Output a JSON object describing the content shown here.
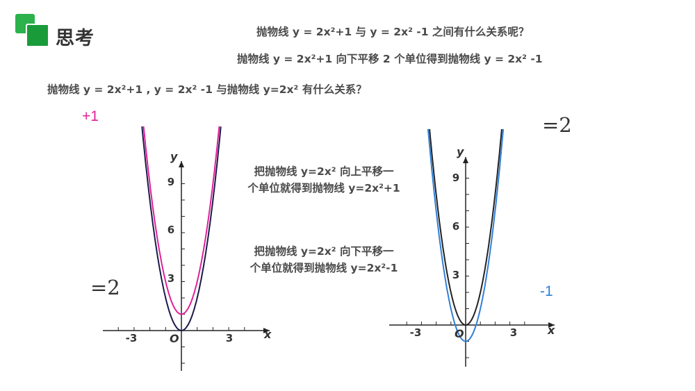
{
  "header": {
    "title": "思考",
    "question1": "抛物线 y = 2x²+1 与 y = 2x² -1 之间有什么关系呢？",
    "answer1": "抛物线 y = 2x²+1 向下平移 2 个单位得到抛物线 y = 2x² -1",
    "question2": "抛物线 y = 2x²+1 , y = 2x² -1 与抛物线 y=2x² 有什么关系？"
  },
  "notes": {
    "up_line1": "把抛物线 y=2x² 向上平移一",
    "up_line2": "个单位就得到抛物线 y=2x²+1",
    "down_line1": "把抛物线 y=2x² 向下平移一",
    "down_line2": "个单位就得到抛物线 y=2x²-1"
  },
  "labels": {
    "plus_one": "+1",
    "eq_two_left": "=2",
    "eq_two_right": "=2",
    "minus_one": "-1"
  },
  "colors": {
    "base_curve": "#1a1a4a",
    "shift_up_curve": "#e0209a",
    "shift_down_curve": "#2f7fd6",
    "right_base_curve": "#222222"
  },
  "chart_data": [
    {
      "type": "line",
      "xlabel": "x",
      "ylabel": "y",
      "origin_label": "O",
      "xticks": [
        "-3",
        "3"
      ],
      "yticks": [
        "3",
        "6",
        "9"
      ],
      "series": [
        {
          "expr": "y=2x^2",
          "x": [
            -1.4,
            -1.2,
            -1,
            -0.8,
            -0.6,
            -0.4,
            -0.2,
            0,
            0.2,
            0.4,
            0.6,
            0.8,
            1,
            1.2,
            1.4
          ],
          "y": [
            3.92,
            2.88,
            2,
            1.28,
            0.72,
            0.32,
            0.08,
            0,
            0.08,
            0.32,
            0.72,
            1.28,
            2,
            2.88,
            3.92
          ]
        },
        {
          "expr": "y=2x^2+1",
          "x": [
            -1.4,
            -1.2,
            -1,
            -0.8,
            -0.6,
            -0.4,
            -0.2,
            0,
            0.2,
            0.4,
            0.6,
            0.8,
            1,
            1.2,
            1.4
          ],
          "y": [
            4.92,
            3.88,
            3,
            2.28,
            1.72,
            1.32,
            1.08,
            1,
            1.08,
            1.32,
            1.72,
            2.28,
            3,
            3.88,
            4.92
          ]
        }
      ]
    },
    {
      "type": "line",
      "xlabel": "x",
      "ylabel": "y",
      "origin_label": "O",
      "xticks": [
        "-3",
        "3"
      ],
      "yticks": [
        "3",
        "6",
        "9"
      ],
      "series": [
        {
          "expr": "y=2x^2",
          "x": [
            -1.4,
            -1.2,
            -1,
            -0.8,
            -0.6,
            -0.4,
            -0.2,
            0,
            0.2,
            0.4,
            0.6,
            0.8,
            1,
            1.2,
            1.4
          ],
          "y": [
            3.92,
            2.88,
            2,
            1.28,
            0.72,
            0.32,
            0.08,
            0,
            0.08,
            0.32,
            0.72,
            1.28,
            2,
            2.88,
            3.92
          ]
        },
        {
          "expr": "y=2x^2-1",
          "x": [
            -1.4,
            -1.2,
            -1,
            -0.8,
            -0.6,
            -0.4,
            -0.2,
            0,
            0.2,
            0.4,
            0.6,
            0.8,
            1,
            1.2,
            1.4
          ],
          "y": [
            2.92,
            1.88,
            1,
            0.28,
            -0.28,
            -0.68,
            -0.92,
            -1,
            -0.92,
            -0.68,
            -0.28,
            0.28,
            1,
            1.88,
            2.92
          ]
        }
      ]
    }
  ]
}
